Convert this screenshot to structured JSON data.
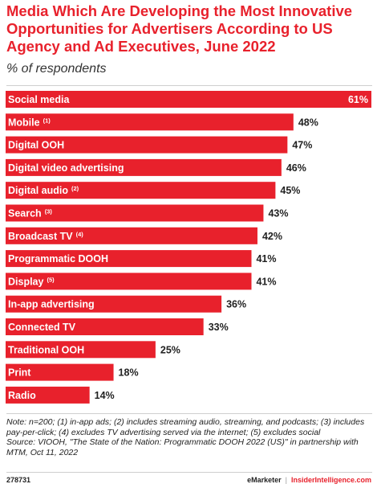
{
  "title": "Media Which Are Developing the Most Innovative Opportunities for Advertisers According to US Agency and Ad Executives, June 2022",
  "subtitle": "% of respondents",
  "colors": {
    "bar": "#e8212c",
    "title": "#e8212c",
    "text": "#222222"
  },
  "chart_data": {
    "type": "bar",
    "orientation": "horizontal",
    "unit": "%",
    "xlim": [
      0,
      61
    ],
    "grid": false,
    "categories": [
      {
        "label": "Social media",
        "note": "",
        "value": 61
      },
      {
        "label": "Mobile",
        "note": "(1)",
        "value": 48
      },
      {
        "label": "Digital OOH",
        "note": "",
        "value": 47
      },
      {
        "label": "Digital video advertising",
        "note": "",
        "value": 46
      },
      {
        "label": "Digital audio",
        "note": "(2)",
        "value": 45
      },
      {
        "label": "Search",
        "note": "(3)",
        "value": 43
      },
      {
        "label": "Broadcast TV",
        "note": "(4)",
        "value": 42
      },
      {
        "label": "Programmatic DOOH",
        "note": "",
        "value": 41
      },
      {
        "label": "Display",
        "note": "(5)",
        "value": 41
      },
      {
        "label": "In-app advertising",
        "note": "",
        "value": 36
      },
      {
        "label": "Connected TV",
        "note": "",
        "value": 33
      },
      {
        "label": "Traditional OOH",
        "note": "",
        "value": 25
      },
      {
        "label": "Print",
        "note": "",
        "value": 18
      },
      {
        "label": "Radio",
        "note": "",
        "value": 14
      }
    ]
  },
  "notes": {
    "note": "Note: n=200; (1) in-app ads; (2) includes streaming audio, streaming, and podcasts; (3) includes pay-per-click; (4) excludes TV advertising served via the internet; (5) excludes social",
    "source": "Source: VIOOH, \"The State of the Nation: Programmatic DOOH 2022 (US)\" in partnership with MTM, Oct 11, 2022"
  },
  "footer": {
    "chart_id": "278731",
    "brand_left": "eMarketer",
    "separator": "|",
    "brand_right": "InsiderIntelligence.com"
  }
}
